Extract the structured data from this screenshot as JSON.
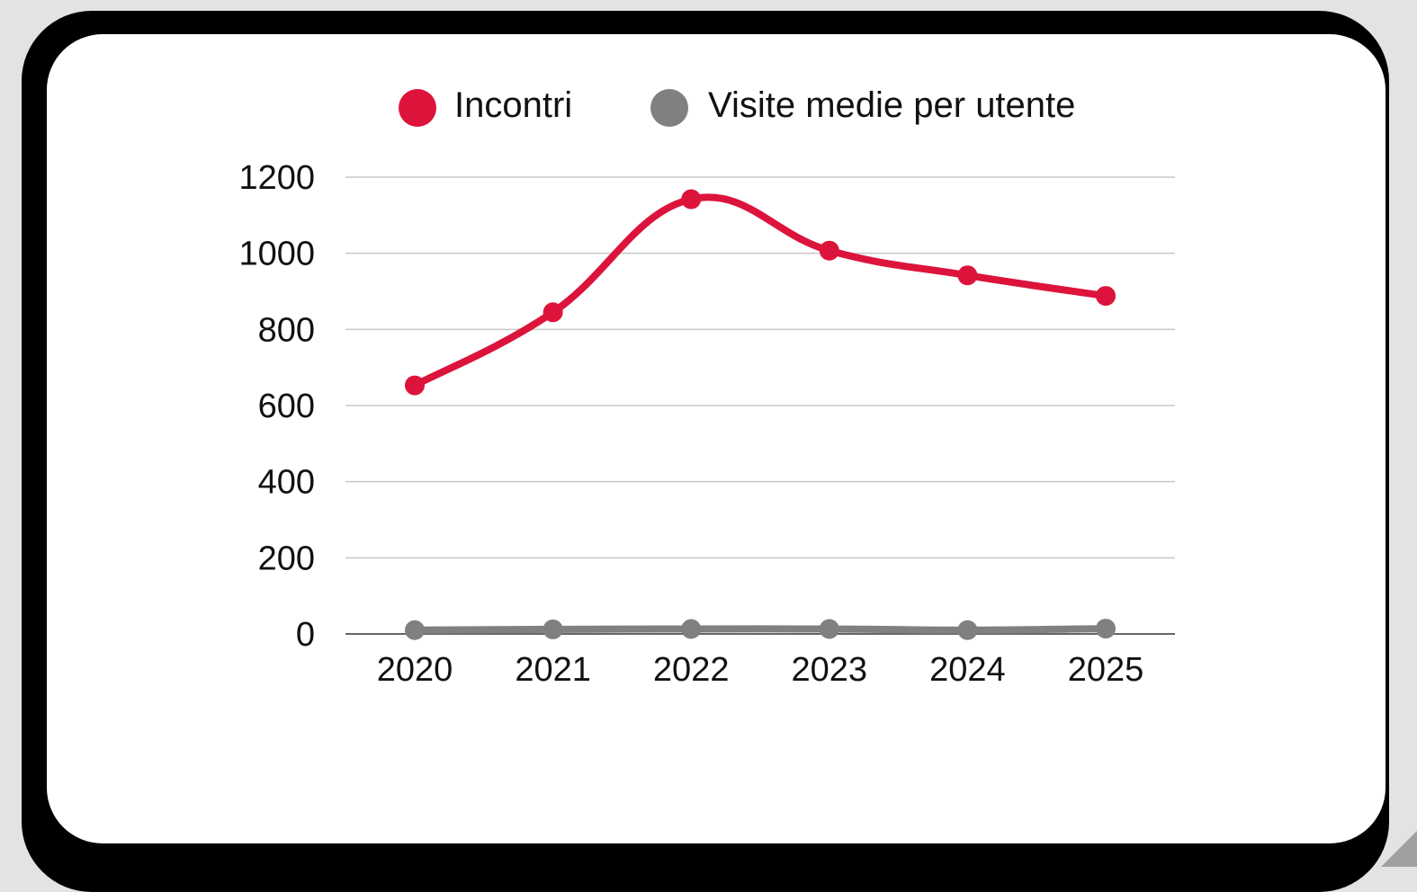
{
  "chart_data": {
    "type": "line",
    "categories": [
      "2020",
      "2021",
      "2022",
      "2023",
      "2024",
      "2025"
    ],
    "series": [
      {
        "name": "Incontri",
        "color": "#dc143c",
        "values": [
          653,
          845,
          1142,
          1007,
          942,
          888
        ]
      },
      {
        "name": "Visite medie per utente",
        "color": "#808080",
        "values": [
          10,
          12,
          13,
          13,
          10,
          14
        ]
      }
    ],
    "ylim": [
      0,
      1200
    ],
    "yticks": [
      0,
      200,
      400,
      600,
      800,
      1000,
      1200
    ],
    "grid": true,
    "legend_position": "top"
  }
}
